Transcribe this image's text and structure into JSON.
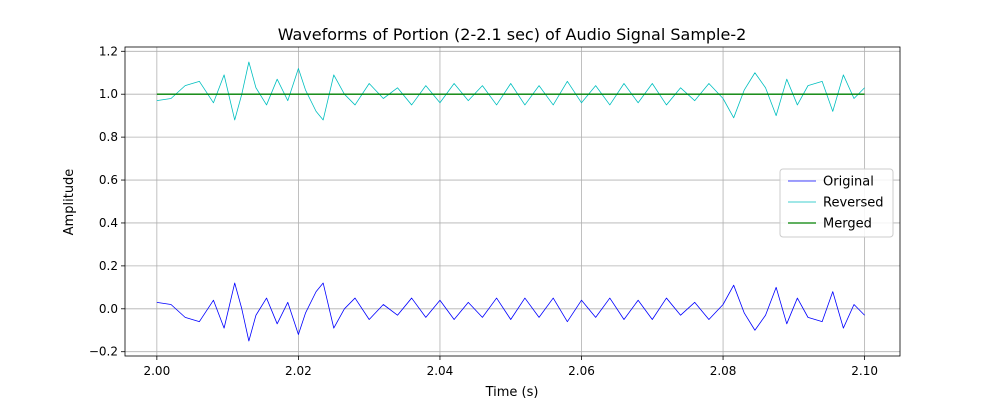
{
  "chart_data": {
    "type": "line",
    "title": "Waveforms of Portion (2-2.1 sec) of Audio Signal Sample-2",
    "xlabel": "Time (s)",
    "ylabel": "Amplitude",
    "xlim": [
      1.9955,
      2.105
    ],
    "ylim": [
      -0.22,
      1.22
    ],
    "xticks": [
      2.0,
      2.02,
      2.04,
      2.06,
      2.08,
      2.1
    ],
    "xtick_labels": [
      "2.00",
      "2.02",
      "2.04",
      "2.06",
      "2.08",
      "2.10"
    ],
    "yticks": [
      -0.2,
      0.0,
      0.2,
      0.4,
      0.6,
      0.8,
      1.0,
      1.2
    ],
    "ytick_labels": [
      "−0.2",
      "0.0",
      "0.2",
      "0.4",
      "0.6",
      "0.8",
      "1.0",
      "1.2"
    ],
    "grid": true,
    "legend_position": "center-right",
    "series": [
      {
        "name": "Original",
        "color": "#0000ff",
        "x": [
          2.0,
          2.002,
          2.004,
          2.006,
          2.008,
          2.0095,
          2.011,
          2.012,
          2.013,
          2.014,
          2.0155,
          2.017,
          2.0185,
          2.02,
          2.021,
          2.0225,
          2.0235,
          2.025,
          2.0265,
          2.028,
          2.03,
          2.032,
          2.034,
          2.036,
          2.038,
          2.04,
          2.042,
          2.044,
          2.046,
          2.048,
          2.05,
          2.052,
          2.054,
          2.056,
          2.058,
          2.06,
          2.062,
          2.064,
          2.066,
          2.068,
          2.07,
          2.072,
          2.074,
          2.076,
          2.078,
          2.08,
          2.0815,
          2.083,
          2.0845,
          2.086,
          2.0875,
          2.089,
          2.0905,
          2.092,
          2.094,
          2.0955,
          2.097,
          2.0985,
          2.1
        ],
        "values": [
          0.03,
          0.02,
          -0.04,
          -0.06,
          0.04,
          -0.09,
          0.12,
          0.0,
          -0.15,
          -0.03,
          0.05,
          -0.07,
          0.03,
          -0.12,
          -0.02,
          0.08,
          0.12,
          -0.09,
          0.0,
          0.05,
          -0.05,
          0.02,
          -0.03,
          0.05,
          -0.04,
          0.04,
          -0.05,
          0.03,
          -0.04,
          0.05,
          -0.05,
          0.05,
          -0.04,
          0.05,
          -0.06,
          0.04,
          -0.04,
          0.05,
          -0.05,
          0.04,
          -0.05,
          0.05,
          -0.03,
          0.03,
          -0.05,
          0.02,
          0.11,
          -0.02,
          -0.1,
          -0.03,
          0.1,
          -0.07,
          0.05,
          -0.04,
          -0.06,
          0.08,
          -0.09,
          0.02,
          -0.03
        ]
      },
      {
        "name": "Reversed",
        "color": "#00bfbf",
        "x": [
          2.0,
          2.002,
          2.004,
          2.006,
          2.008,
          2.0095,
          2.011,
          2.012,
          2.013,
          2.014,
          2.0155,
          2.017,
          2.0185,
          2.02,
          2.021,
          2.0225,
          2.0235,
          2.025,
          2.0265,
          2.028,
          2.03,
          2.032,
          2.034,
          2.036,
          2.038,
          2.04,
          2.042,
          2.044,
          2.046,
          2.048,
          2.05,
          2.052,
          2.054,
          2.056,
          2.058,
          2.06,
          2.062,
          2.064,
          2.066,
          2.068,
          2.07,
          2.072,
          2.074,
          2.076,
          2.078,
          2.08,
          2.0815,
          2.083,
          2.0845,
          2.086,
          2.0875,
          2.089,
          2.0905,
          2.092,
          2.094,
          2.0955,
          2.097,
          2.0985,
          2.1
        ],
        "values": [
          0.97,
          0.98,
          1.04,
          1.06,
          0.96,
          1.09,
          0.88,
          1.0,
          1.15,
          1.03,
          0.95,
          1.07,
          0.97,
          1.12,
          1.02,
          0.92,
          0.88,
          1.09,
          1.0,
          0.95,
          1.05,
          0.98,
          1.03,
          0.95,
          1.04,
          0.96,
          1.05,
          0.97,
          1.04,
          0.95,
          1.05,
          0.95,
          1.04,
          0.95,
          1.06,
          0.96,
          1.04,
          0.95,
          1.05,
          0.96,
          1.05,
          0.95,
          1.03,
          0.97,
          1.05,
          0.98,
          0.89,
          1.02,
          1.1,
          1.03,
          0.9,
          1.07,
          0.95,
          1.04,
          1.06,
          0.92,
          1.09,
          0.98,
          1.03
        ]
      },
      {
        "name": "Merged",
        "color": "#008000",
        "x": [
          2.0,
          2.1
        ],
        "values": [
          1.0,
          1.0
        ]
      }
    ]
  }
}
